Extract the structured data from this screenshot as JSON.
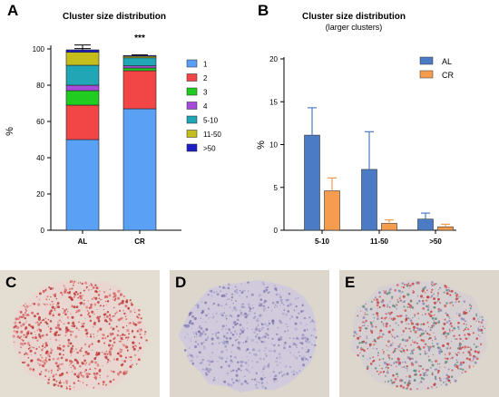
{
  "panels": {
    "a": "A",
    "b": "B",
    "c": "C",
    "d": "D",
    "e": "E"
  },
  "chart_data": [
    {
      "type": "bar",
      "stacked": true,
      "title": "Cluster size distribution",
      "ylabel": "%",
      "ylim": [
        0,
        100
      ],
      "yticks": [
        0,
        20,
        40,
        60,
        80,
        100
      ],
      "categories": [
        "AL",
        "CR"
      ],
      "annotation": "***",
      "legend_position": "right",
      "series": [
        {
          "name": "1",
          "color": "#5aa0f5",
          "values": [
            50,
            67
          ],
          "err": [
            9,
            3
          ]
        },
        {
          "name": "2",
          "color": "#f24646",
          "values": [
            19,
            21
          ],
          "err": [
            0,
            0
          ]
        },
        {
          "name": "3",
          "color": "#1fcc1f",
          "values": [
            8,
            1.5
          ],
          "err": [
            2,
            1
          ]
        },
        {
          "name": "4",
          "color": "#a54dd9",
          "values": [
            3,
            1.2
          ],
          "err": [
            1,
            0.5
          ]
        },
        {
          "name": "5-10",
          "color": "#20a6b5",
          "values": [
            11,
            4.4
          ],
          "err": [
            3,
            1.5
          ]
        },
        {
          "name": "11-50",
          "color": "#c4bd1c",
          "values": [
            7.2,
            0.8
          ],
          "err": [
            4,
            0.4
          ]
        },
        {
          "name": ">50",
          "color": "#1d1fc4",
          "values": [
            1.3,
            0.5
          ],
          "err": [
            0.7,
            0.3
          ]
        }
      ]
    },
    {
      "type": "bar",
      "title": "Cluster size distribution",
      "subtitle": "(larger clusters)",
      "ylabel": "%",
      "ylim": [
        0,
        20
      ],
      "yticks": [
        0,
        5,
        10,
        15,
        20
      ],
      "categories": [
        "5-10",
        "11-50",
        ">50"
      ],
      "legend_position": "top-right",
      "series": [
        {
          "name": "AL",
          "color": "#4a7bc4",
          "values": [
            11.1,
            7.1,
            1.3
          ],
          "err": [
            3.2,
            4.4,
            0.7
          ]
        },
        {
          "name": "CR",
          "color": "#f59c4f",
          "values": [
            4.6,
            0.8,
            0.4
          ],
          "err": [
            1.5,
            0.4,
            0.3
          ]
        }
      ]
    }
  ]
}
